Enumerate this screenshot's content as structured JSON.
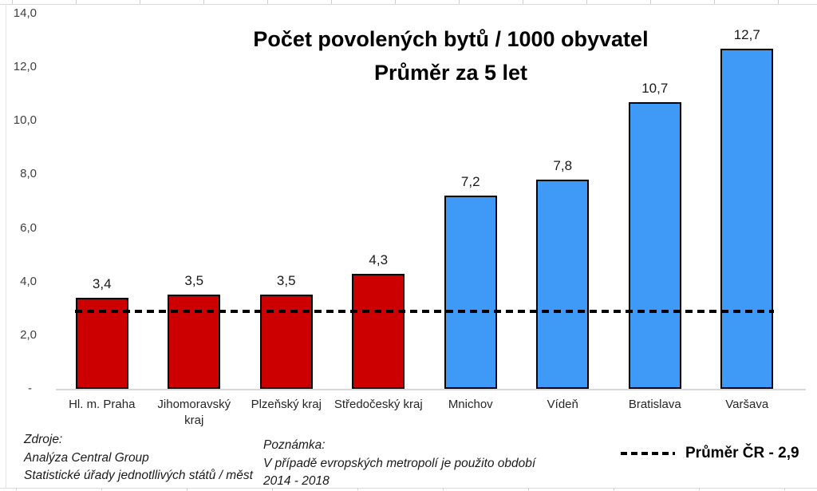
{
  "chart_data": {
    "type": "bar",
    "title_line1": "Počet povolených bytů / 1000 obyvatel",
    "title_line2": "Průměr za 5 let",
    "categories": [
      "Hl. m. Praha",
      "Jihomoravský kraj",
      "Plzeňský kraj",
      "Středočeský kraj",
      "Mnichov",
      "Vídeň",
      "Bratislava",
      "Varšava"
    ],
    "categories_display": [
      "Hl. m. Praha",
      "Jihomoravský\nkraj",
      "Plzeňský kraj",
      "Středočeský kraj",
      "Mnichov",
      "Vídeň",
      "Bratislava",
      "Varšava"
    ],
    "values": [
      3.4,
      3.5,
      3.5,
      4.3,
      7.2,
      7.8,
      10.7,
      12.7
    ],
    "value_labels": [
      "3,4",
      "3,5",
      "3,5",
      "4,3",
      "7,2",
      "7,8",
      "10,7",
      "12,7"
    ],
    "groups": [
      "czech_region",
      "czech_region",
      "czech_region",
      "czech_region",
      "metropolis",
      "metropolis",
      "metropolis",
      "metropolis"
    ],
    "colors": {
      "czech_region": "#cc0000",
      "metropolis": "#3e99f7",
      "bar_border": "#000000",
      "average_line": "#000000"
    },
    "y_axis": {
      "tick_labels": [
        "14,0",
        "12,0",
        "10,0",
        "8,0",
        "6,0",
        "4,0",
        "2,0",
        "-"
      ],
      "tick_values": [
        14,
        12,
        10,
        8,
        6,
        4,
        2,
        0
      ],
      "min": 0,
      "max": 14
    },
    "average_line": {
      "value": 2.9,
      "style": "dashed"
    },
    "legend": {
      "label": "Průměr ČR - 2,9",
      "position": "bottom-right",
      "marker": "dashed-line"
    },
    "grid": false,
    "xlabel": "",
    "ylabel": ""
  },
  "footnotes": {
    "sources_heading": "Zdroje:",
    "sources_line1": "Analýza Central Group",
    "sources_line2": "Statistické úřady jednotllivých států / měst",
    "note_heading": "Poznámka:",
    "note_line1": "V případě evropských metropolí je použito období",
    "note_line2": "2014 - 2018"
  }
}
